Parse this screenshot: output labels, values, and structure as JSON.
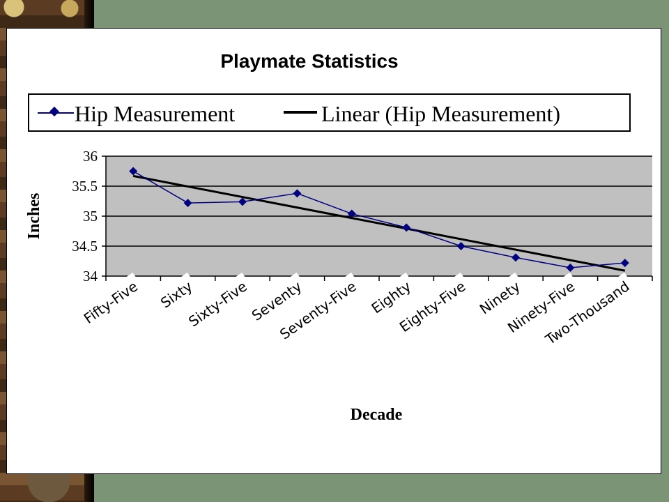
{
  "chart_data": {
    "type": "line",
    "title": "Playmate Statistics",
    "xlabel": "Decade",
    "ylabel": "Inches",
    "categories": [
      "Fifty-Five",
      "Sixty",
      "Sixty-Five",
      "Seventy",
      "Seventy-Five",
      "Eighty",
      "Eighty-Five",
      "Ninety",
      "Ninety-Five",
      "Two-Thousand"
    ],
    "series": [
      {
        "name": "Hip Measurement",
        "values": [
          35.75,
          35.22,
          35.24,
          35.38,
          35.04,
          34.81,
          34.5,
          34.31,
          34.14,
          34.22
        ],
        "color": "#000080"
      }
    ],
    "trendline": {
      "name": "Linear (Hip Measurement)",
      "start": 35.67,
      "end": 34.09,
      "color": "#000000"
    },
    "ylim": [
      34,
      36
    ],
    "yticks": [
      "34",
      "34.5",
      "35",
      "35.5",
      "36"
    ],
    "grid": true,
    "legend": "top",
    "plot_background": "#c0c0c0"
  }
}
